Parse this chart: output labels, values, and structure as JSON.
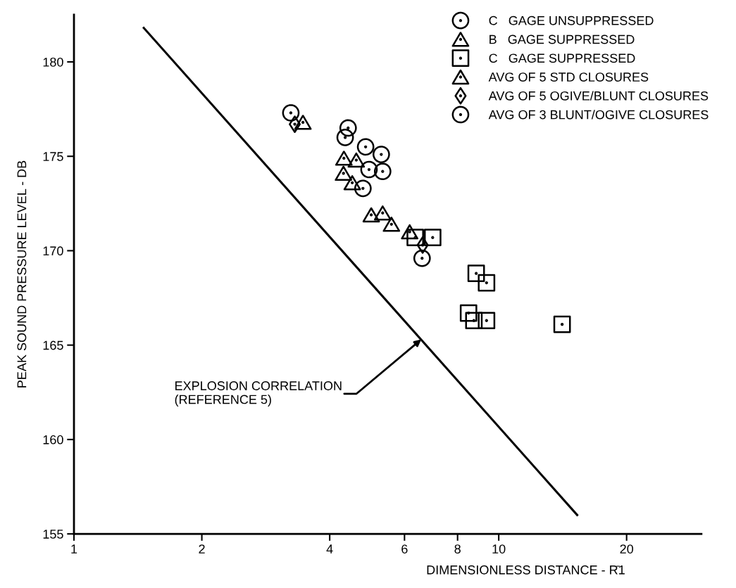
{
  "chart_data": {
    "type": "scatter",
    "xlabel": "DIMENSIONLESS DISTANCE - R̄1",
    "ylabel": "PEAK SOUND PRESSURE LEVEL - DB",
    "log": "x",
    "xlim": [
      1,
      30
    ],
    "xticks": [
      1,
      2,
      4,
      6,
      8,
      10,
      20
    ],
    "ylim": [
      155,
      182.5
    ],
    "yticks": [
      155,
      160,
      165,
      170,
      175,
      180
    ],
    "grid": false,
    "legend": "top right",
    "series": [
      {
        "name": "C   GAGE UNSUPPRESSED",
        "color": "#000000",
        "marker": "circle",
        "x": [
          4.42,
          4.35,
          4.86,
          5.29,
          4.95,
          5.33,
          4.79
        ],
        "values": [
          176.5,
          176.0,
          175.5,
          175.1,
          174.3,
          174.2,
          173.3
        ]
      },
      {
        "name": "B   GAGE SUPPRESSED",
        "color": "#000000",
        "marker": "triangle",
        "x": [
          4.32,
          4.62,
          4.31,
          4.52,
          5.01,
          5.33,
          5.59
        ],
        "values": [
          174.9,
          174.8,
          174.1,
          173.6,
          171.9,
          172.0,
          171.4
        ]
      },
      {
        "name": "C   GAGE SUPPRESSED",
        "color": "#000000",
        "marker": "square",
        "x": [
          6.36,
          6.99,
          8.85,
          9.36,
          8.49,
          8.74,
          9.36,
          14.1
        ],
        "values": [
          170.7,
          170.7,
          168.8,
          168.3,
          166.7,
          166.3,
          166.3,
          166.1
        ]
      },
      {
        "name": "AVG OF 5 STD CLOSURES",
        "color": "#000000",
        "marker": "triangle",
        "x": [
          3.46,
          6.17
        ],
        "values": [
          176.8,
          171.0
        ]
      },
      {
        "name": "AVG OF 5 OGIVE/BLUNT CLOSURES",
        "color": "#000000",
        "marker": "diamond",
        "x": [
          3.31,
          6.62
        ],
        "values": [
          176.7,
          170.3
        ]
      },
      {
        "name": "AVG OF 3 BLUNT/OGIVE CLOSURES",
        "color": "#000000",
        "marker": "circle",
        "x": [
          3.24,
          6.6
        ],
        "values": [
          177.3,
          169.6
        ]
      },
      {
        "type": "line",
        "color": "#000000",
        "marker": "none",
        "line_style": "solid",
        "x": [
          1.46,
          15.3
        ],
        "values": [
          181.8,
          156.0
        ]
      }
    ],
    "annotations": [
      {
        "text": "EXPLOSION CORRELATION\n(REFERENCE 5)",
        "x": 6.57,
        "y": 165.3
      }
    ]
  }
}
